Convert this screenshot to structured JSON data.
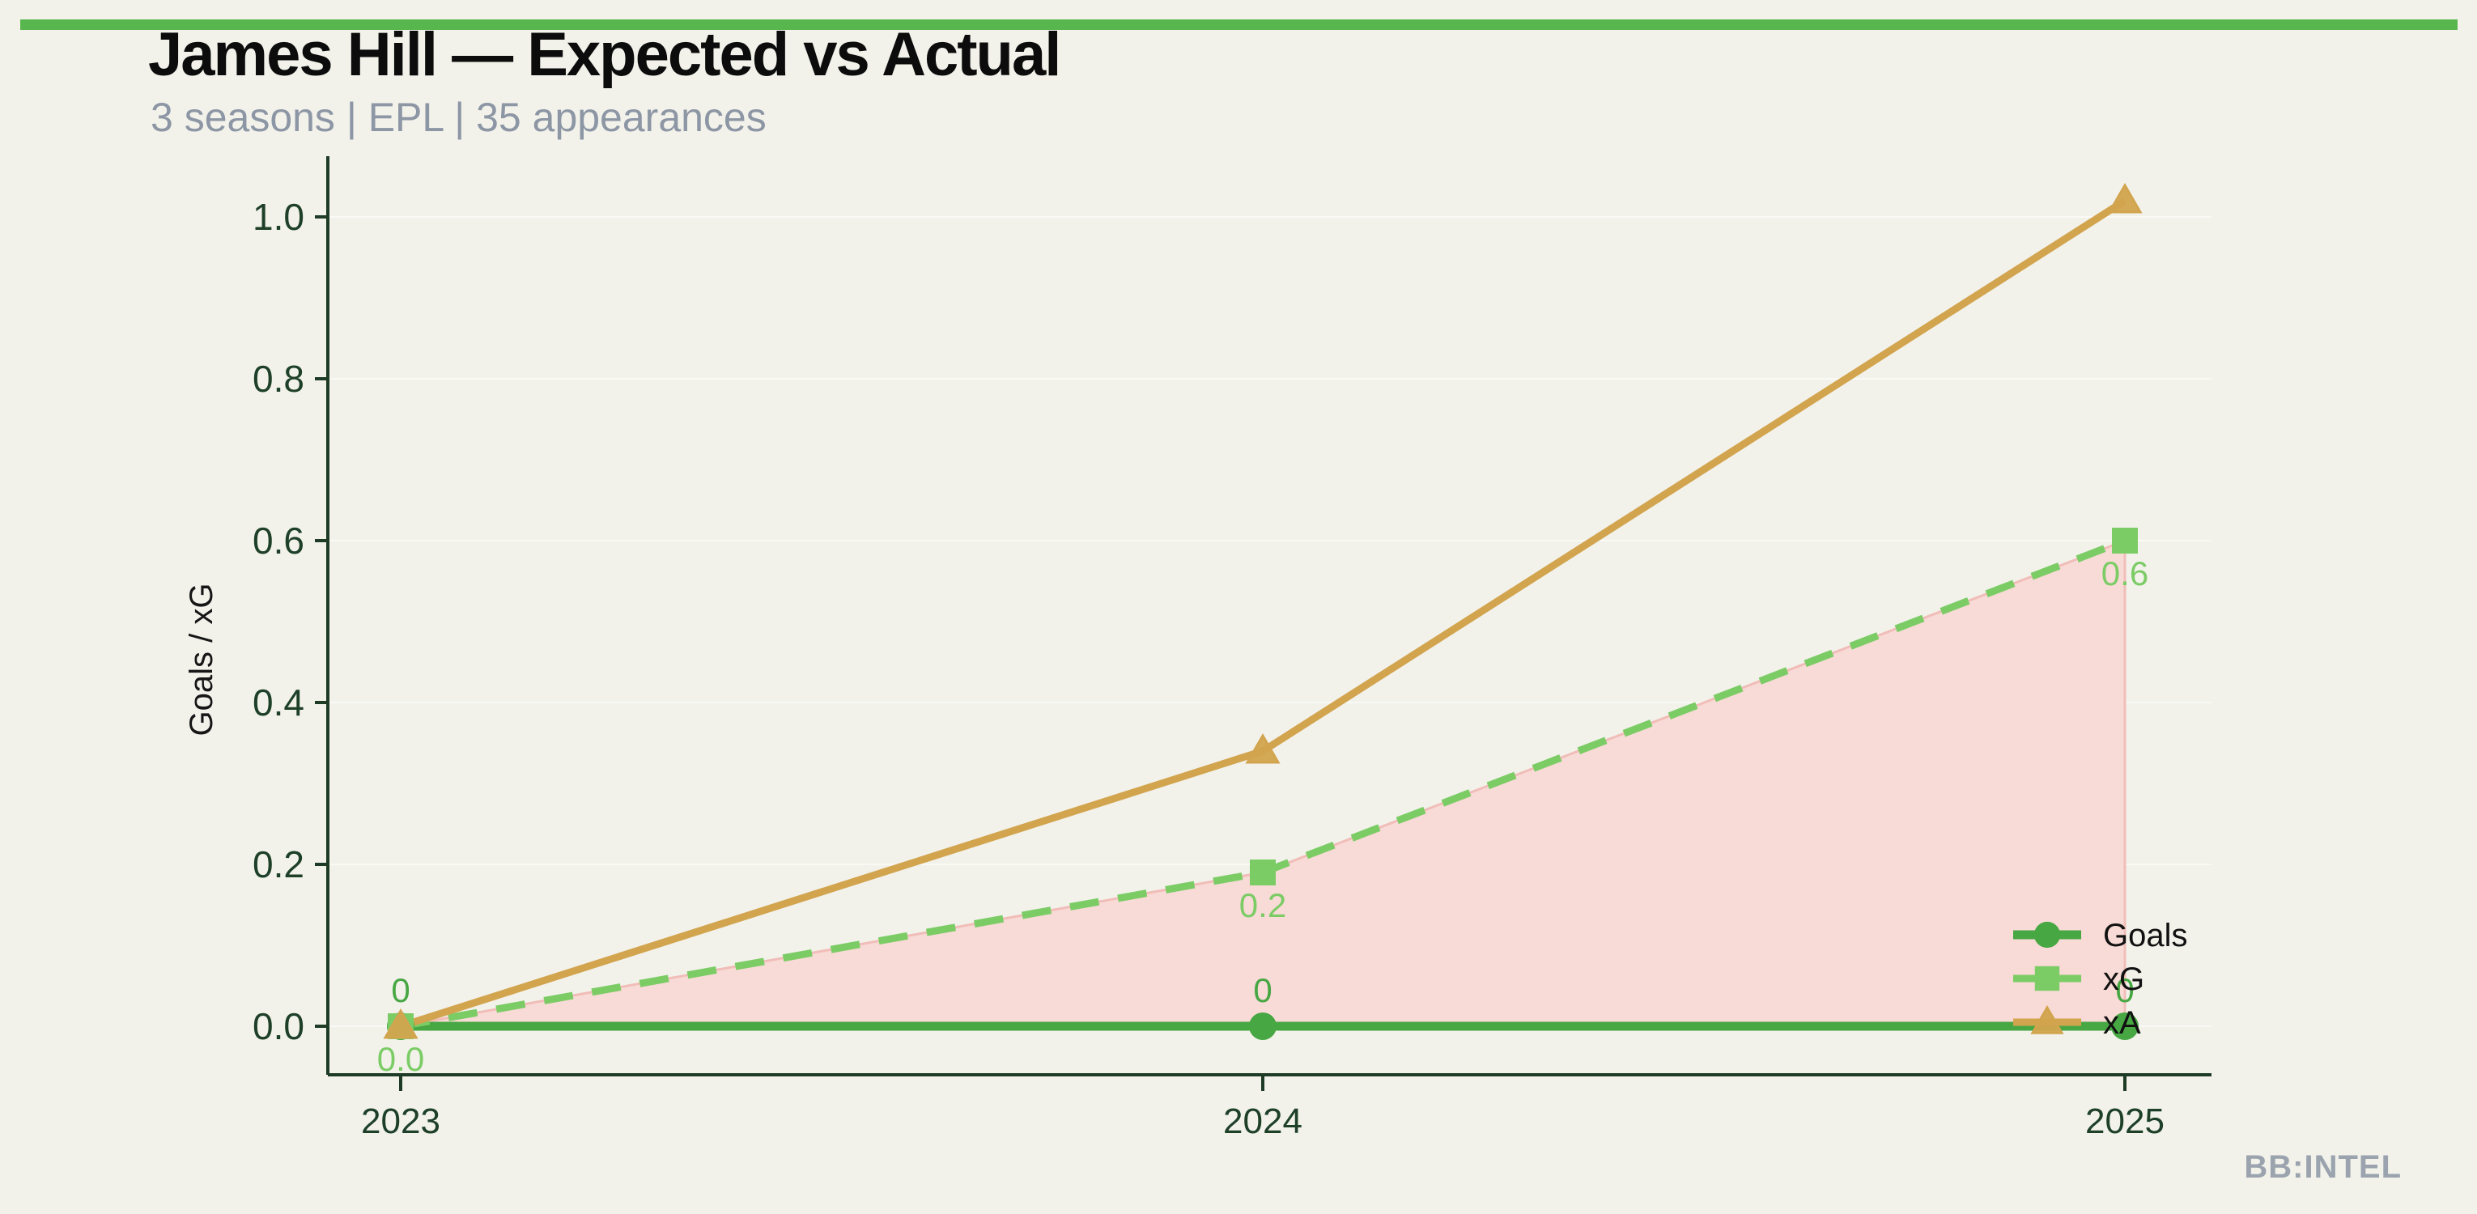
{
  "page": {
    "background": "#f2f2eb",
    "accent_bar_color": "#57b64e"
  },
  "branding": {
    "watermark": "BB:INTEL"
  },
  "chart_data": {
    "type": "line",
    "title": "James Hill — Expected vs Actual",
    "subtitle": "3 seasons | EPL | 35 appearances",
    "categories": [
      "2023",
      "2024",
      "2025"
    ],
    "xlabel": "",
    "ylabel": "Goals / xG",
    "ylim": [
      0,
      1.05
    ],
    "yticks": [
      0,
      0.2,
      0.4,
      0.6,
      0.8,
      1.0
    ],
    "ytick_labels": [
      "0.0",
      "0.2",
      "0.4",
      "0.6",
      "0.8",
      "1.0"
    ],
    "grid": "faint horizontal gridlines",
    "legend_position": "lower right inside plot",
    "axis_color": "#1e3b26",
    "tick_label_color": "#1e4028",
    "grid_color": "#ffffff",
    "legend_text_color": "#111111",
    "series": [
      {
        "name": "Goals",
        "values": [
          0,
          0,
          0
        ],
        "color": "#47a743",
        "marker": "circle",
        "line": "solid",
        "line_width": 11,
        "point_labels": [
          "0",
          "0",
          "0"
        ],
        "point_label_side": "above"
      },
      {
        "name": "xG",
        "values": [
          0,
          0.19,
          0.6
        ],
        "color": "#7ccc66",
        "marker": "square",
        "line": "dashed",
        "line_width": 9,
        "point_labels": [
          "0.0",
          "0.2",
          "0.6"
        ],
        "point_label_side": "below"
      },
      {
        "name": "xA",
        "values": [
          0,
          0.34,
          1.02
        ],
        "color": "#d2a44e",
        "marker": "triangle",
        "line": "solid",
        "line_width": 9,
        "point_labels": [],
        "point_label_side": "none"
      }
    ],
    "shaded_area": {
      "between": [
        "xG",
        "Goals"
      ],
      "fill": "#f8d8d5",
      "edge": "#f1bdb8"
    }
  }
}
